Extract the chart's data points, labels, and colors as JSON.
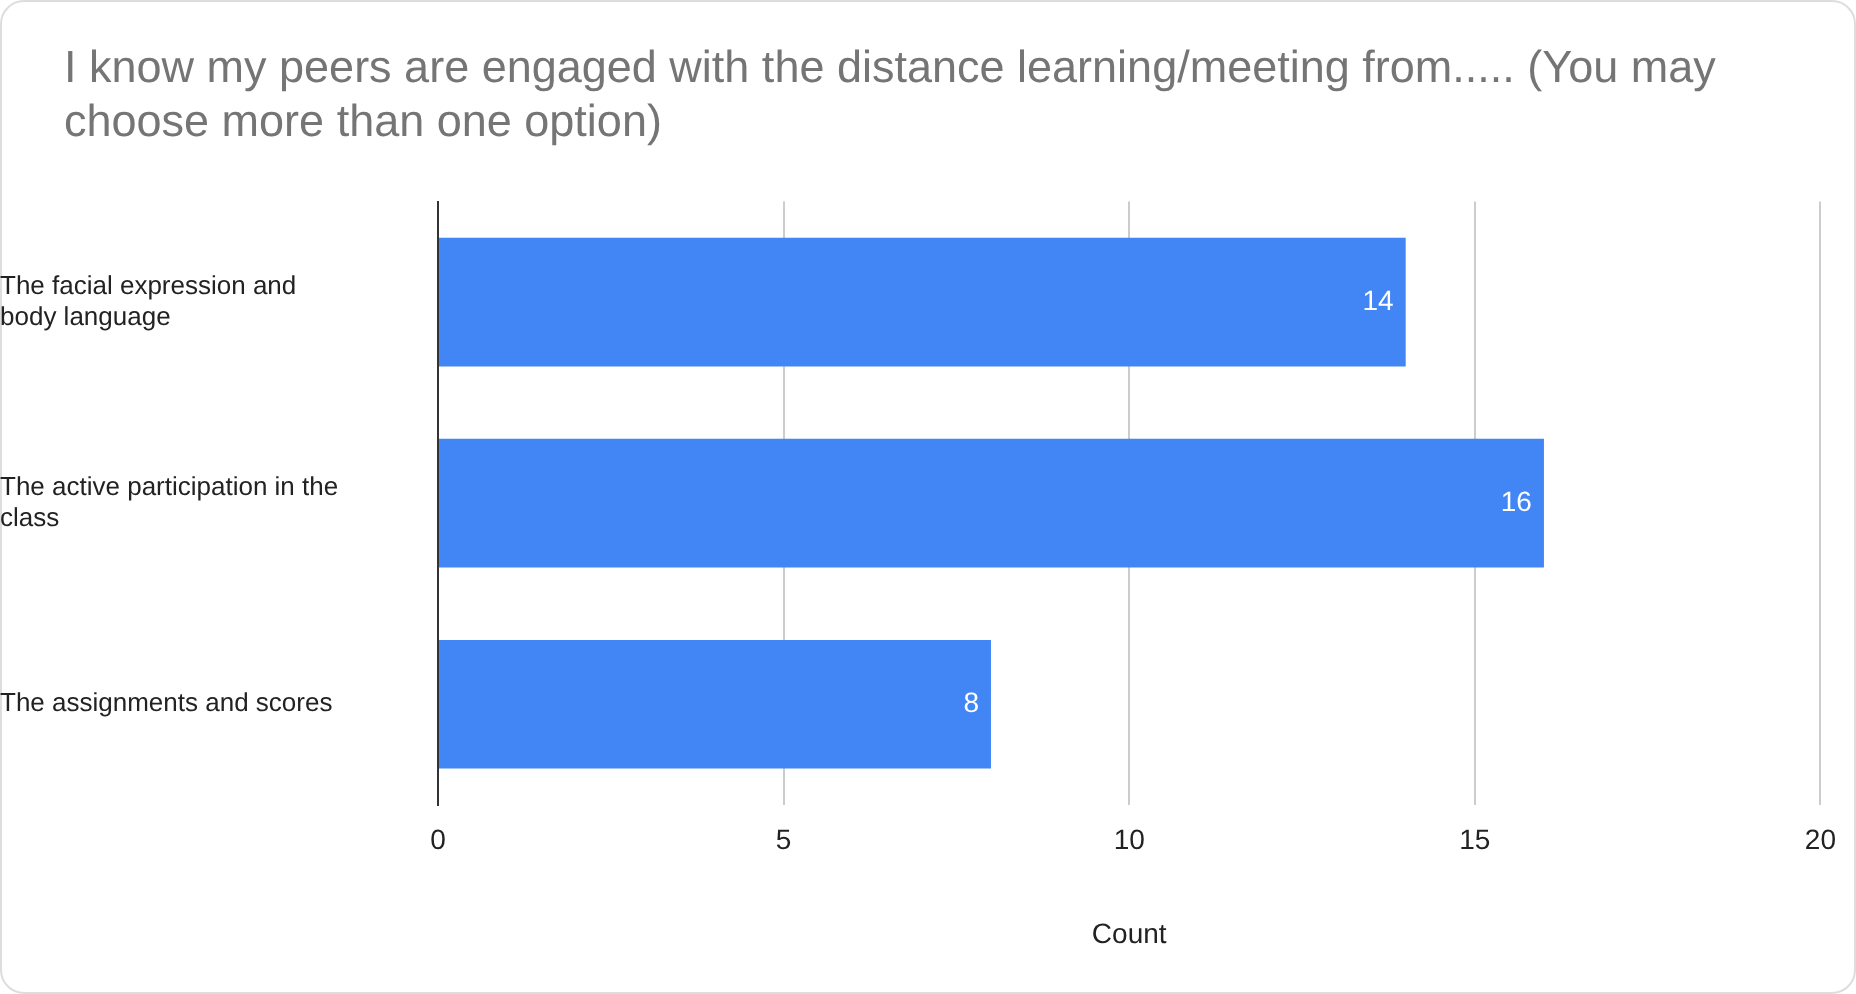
{
  "chart_data": {
    "type": "bar",
    "orientation": "horizontal",
    "title": "I know my peers are engaged with the distance learning/meeting from..... (You may choose more than one option)",
    "xlabel": "Count",
    "categories": [
      "The facial expression and body language",
      "The active participation in the class",
      "The assignments and scores"
    ],
    "series": [
      {
        "color": "#4285f4",
        "values": [
          14,
          16,
          8
        ]
      }
    ],
    "xlim": [
      0,
      20
    ],
    "xticks": [
      0,
      5,
      10,
      15,
      20
    ],
    "grid": "x",
    "legend": false,
    "data_labels": true
  }
}
